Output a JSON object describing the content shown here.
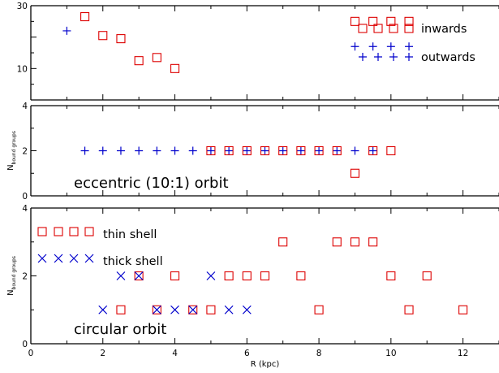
{
  "colors": {
    "inwards": "#dd0000",
    "outwards": "#0000cc",
    "axes": "#000000"
  },
  "chart_data": [
    {
      "type": "scatter",
      "panel": "top",
      "xlim": [
        0,
        13
      ],
      "ylim": [
        0,
        30
      ],
      "y_ticks": [
        10,
        30
      ],
      "y_tick_labels": [
        "10",
        "30"
      ],
      "legend": [
        {
          "label": "inwards",
          "marker": "square",
          "color": "#dd0000"
        },
        {
          "label": "outwards",
          "marker": "plus",
          "color": "#0000cc"
        }
      ],
      "legend_position": "top-right",
      "series": [
        {
          "name": "inwards",
          "marker": "square",
          "color": "#dd0000",
          "x": [
            1.5,
            2.0,
            2.5,
            3.0,
            3.5,
            4.0,
            9.0,
            9.5,
            10.0,
            10.5
          ],
          "y": [
            26.5,
            20.5,
            19.5,
            12.5,
            13.5,
            10.0,
            25.0,
            25.0,
            25.0,
            25.0
          ]
        },
        {
          "name": "outwards",
          "marker": "plus",
          "color": "#0000cc",
          "x": [
            1.0,
            9.0,
            9.5,
            10.0,
            10.5
          ],
          "y": [
            22.0,
            17.0,
            17.0,
            17.0,
            17.0
          ]
        }
      ]
    },
    {
      "type": "scatter",
      "panel": "middle",
      "xlim": [
        0,
        13
      ],
      "ylim": [
        0,
        4
      ],
      "y_ticks": [
        0,
        2,
        4
      ],
      "y_tick_labels": [
        "0",
        "2",
        "4"
      ],
      "ylabel_main": "N",
      "ylabel_sub": "bound groups",
      "annotation": "eccentric (10:1) orbit",
      "series": [
        {
          "marker": "plus",
          "color": "#0000cc",
          "x": [
            1.5,
            2.0,
            2.5,
            3.0,
            3.5,
            4.0,
            4.5,
            5.0,
            5.5,
            6.0,
            6.5,
            7.0,
            7.5,
            8.0,
            8.5,
            9.0,
            9.5
          ],
          "y": [
            2,
            2,
            2,
            2,
            2,
            2,
            2,
            2,
            2,
            2,
            2,
            2,
            2,
            2,
            2,
            2,
            2
          ]
        },
        {
          "marker": "square",
          "color": "#dd0000",
          "x": [
            5.0,
            5.5,
            6.0,
            6.5,
            7.0,
            7.5,
            8.0,
            8.5,
            9.0,
            9.5,
            10.0
          ],
          "y": [
            2,
            2,
            2,
            2,
            2,
            2,
            2,
            2,
            1,
            2,
            2
          ]
        }
      ]
    },
    {
      "type": "scatter",
      "panel": "bottom",
      "xlim": [
        0,
        13
      ],
      "ylim": [
        0,
        4
      ],
      "x_ticks": [
        0,
        2,
        4,
        6,
        8,
        10,
        12
      ],
      "x_tick_labels": [
        "0",
        "2",
        "4",
        "6",
        "8",
        "10",
        "12"
      ],
      "xlabel": "R (kpc)",
      "y_ticks": [
        0,
        2,
        4
      ],
      "y_tick_labels": [
        "0",
        "2",
        "4"
      ],
      "ylabel_main": "N",
      "ylabel_sub": "bound groups",
      "annotation": "circular orbit",
      "legend": [
        {
          "label": "thin shell",
          "marker": "square",
          "color": "#dd0000"
        },
        {
          "label": "thick shell",
          "marker": "cross",
          "color": "#0000cc"
        }
      ],
      "legend_position": "top-left",
      "series": [
        {
          "name": "thin shell",
          "marker": "square",
          "color": "#dd0000",
          "x": [
            2.5,
            3.0,
            3.5,
            4.0,
            4.5,
            5.0,
            5.5,
            6.0,
            6.5,
            7.0,
            7.5,
            8.0,
            8.5,
            9.0,
            9.5,
            10.0,
            10.5,
            11.0,
            12.0
          ],
          "y": [
            1,
            2,
            1,
            2,
            1,
            1,
            2,
            2,
            2,
            3,
            2,
            1,
            3,
            3,
            3,
            2,
            1,
            2,
            1
          ]
        },
        {
          "name": "thick shell",
          "marker": "cross",
          "color": "#0000cc",
          "x": [
            2.0,
            2.5,
            3.0,
            3.5,
            4.0,
            4.5,
            5.0,
            5.5,
            6.0
          ],
          "y": [
            1,
            2,
            2,
            1,
            1,
            1,
            2,
            1,
            1
          ]
        }
      ]
    }
  ]
}
